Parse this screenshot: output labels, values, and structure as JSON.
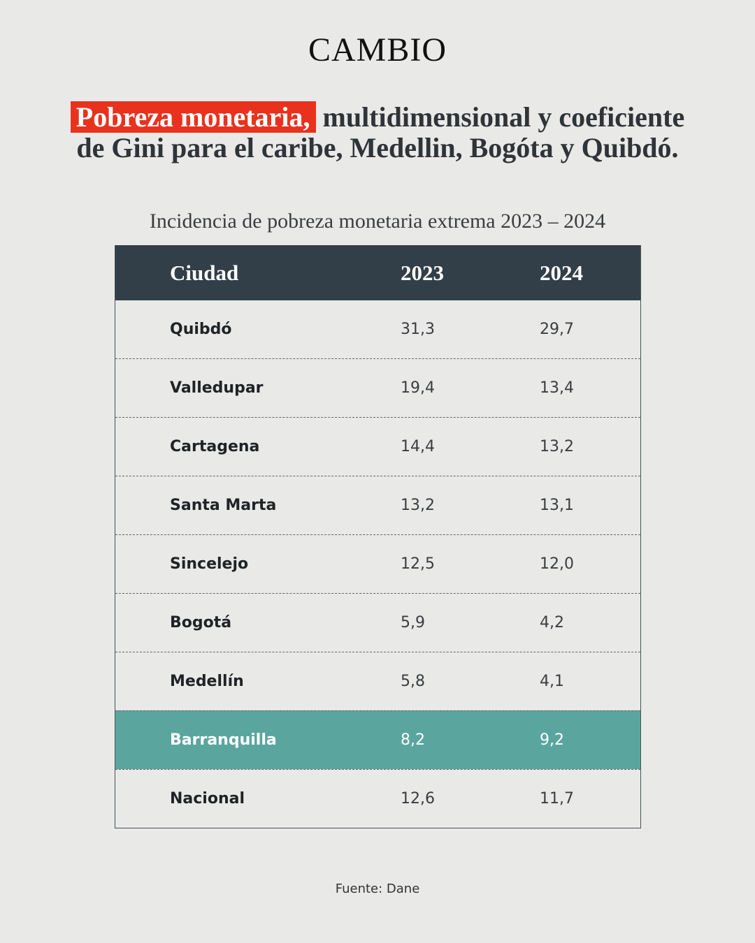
{
  "header": {
    "brand": "CAMBIO"
  },
  "headline": {
    "highlight": "Pobreza monetaria,",
    "line1": "multidimensional y coeficiente",
    "line2": "de Gini para el caribe, Medellin, Bogóta y Quibdó."
  },
  "subtitle": "Incidencia de pobreza monetaria extrema 2023 – 2024",
  "table": {
    "columns": [
      "Ciudad",
      "2023",
      "2024"
    ],
    "rows": [
      [
        "Quibdó",
        "31,3",
        "29,7"
      ],
      [
        "Valledupar",
        "19,4",
        "13,4"
      ],
      [
        "Cartagena",
        "14,4",
        "13,2"
      ],
      [
        "Santa Marta",
        "13,2",
        "13,1"
      ],
      [
        "Sincelejo",
        "12,5",
        "12,0"
      ],
      [
        "Bogotá",
        "5,9",
        "4,2"
      ],
      [
        "Medellín",
        "5,8",
        "4,1"
      ],
      [
        "Barranquilla",
        "8,2",
        "9,2"
      ],
      [
        "Nacional",
        "12,6",
        "11,7"
      ]
    ],
    "highlighted_row": 7
  },
  "source": "Fuente: Dane"
}
